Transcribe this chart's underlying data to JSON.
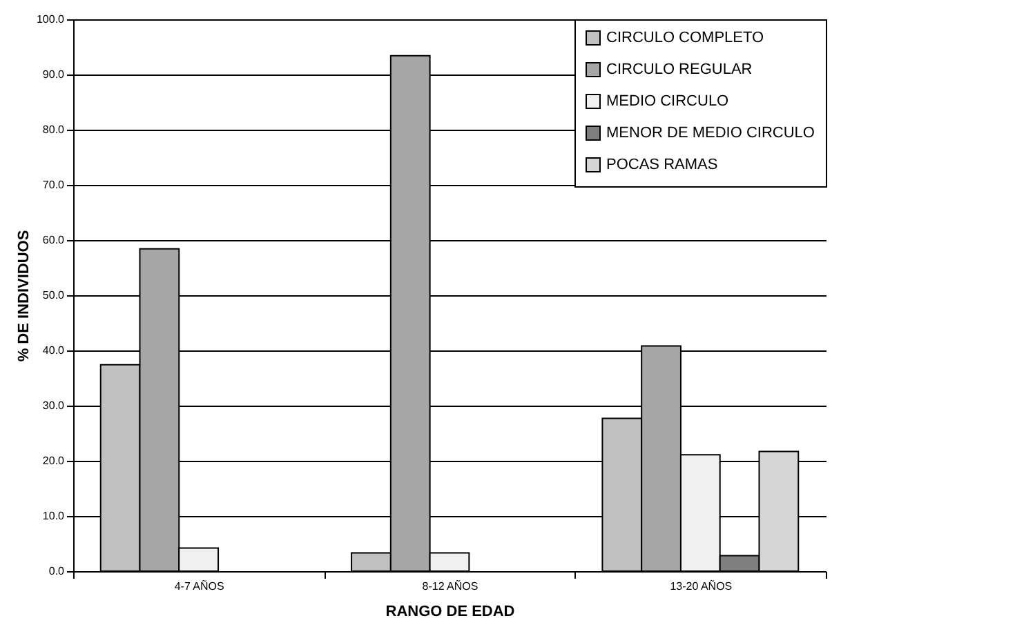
{
  "chart_data": {
    "type": "bar",
    "xlabel": "RANGO DE EDAD",
    "ylabel": "% DE INDIVIDUOS",
    "categories": [
      "4-7 AÑOS",
      "8-12 AÑOS",
      "13-20 AÑOS"
    ],
    "series": [
      {
        "name": "CIRCULO COMPLETO",
        "color": "#c0c0c0",
        "values": [
          37.4,
          3.3,
          27.7
        ]
      },
      {
        "name": "CIRCULO REGULAR",
        "color": "#a6a6a6",
        "values": [
          58.4,
          93.4,
          40.8
        ]
      },
      {
        "name": "MEDIO CIRCULO",
        "color": "#f0f0f0",
        "values": [
          4.2,
          3.3,
          21.1
        ]
      },
      {
        "name": "MENOR DE MEDIO CIRCULO",
        "color": "#7f7f7f",
        "values": [
          null,
          null,
          2.8
        ]
      },
      {
        "name": "POCAS RAMAS",
        "color": "#d6d6d6",
        "values": [
          null,
          null,
          21.7
        ]
      }
    ],
    "ylim": [
      0,
      100
    ],
    "yticks": [
      {
        "value": 0,
        "label": "0.0"
      },
      {
        "value": 10,
        "label": "10.0"
      },
      {
        "value": 20,
        "label": "20.0"
      },
      {
        "value": 30,
        "label": "30.0"
      },
      {
        "value": 40,
        "label": "40.0"
      },
      {
        "value": 50,
        "label": "50.0"
      },
      {
        "value": 60,
        "label": "60.0"
      },
      {
        "value": 70,
        "label": "70.0"
      },
      {
        "value": 80,
        "label": "80.0"
      },
      {
        "value": 90,
        "label": "90.0"
      },
      {
        "value": 100,
        "label": "100.0"
      }
    ],
    "grid": "y",
    "legend": "top right"
  }
}
